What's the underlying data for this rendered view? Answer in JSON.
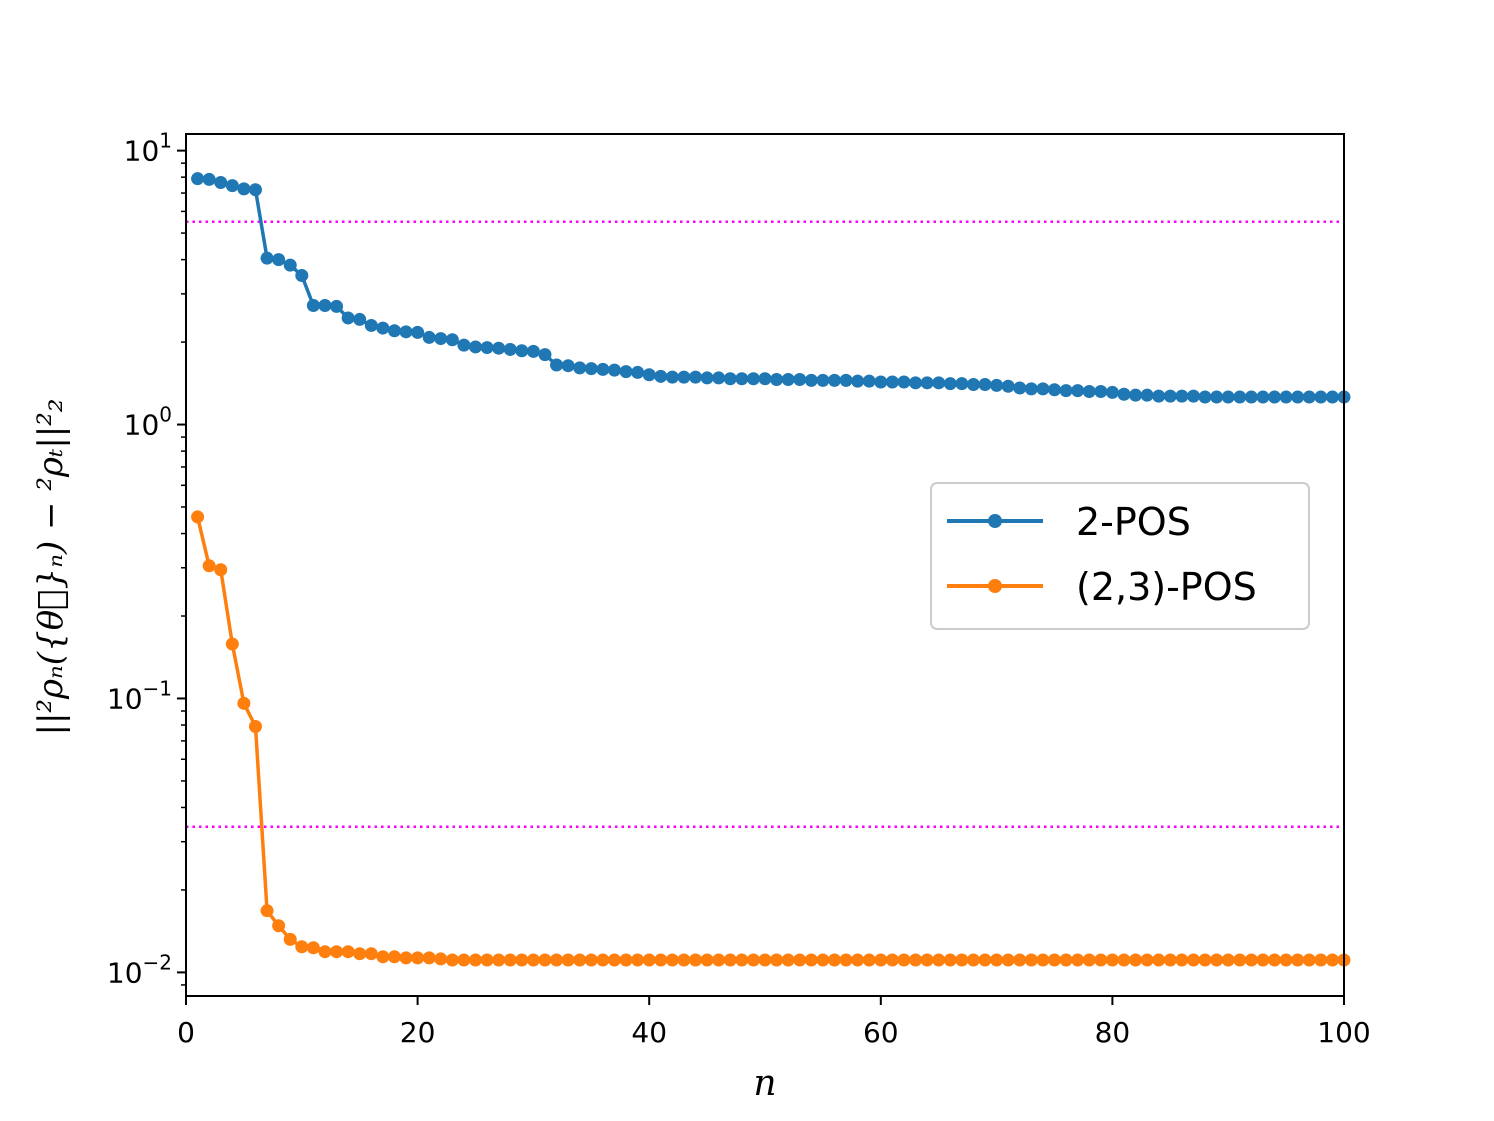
{
  "chart_data": {
    "type": "line",
    "xlabel": "n",
    "ylabel": "||²ρₙ({θ⃗}ₙ) − ²ρₜ||²₂",
    "xlim": [
      0,
      100
    ],
    "ylim": [
      0.0082,
      11.5
    ],
    "yscale": "log",
    "xticks": [
      0,
      20,
      40,
      60,
      80,
      100
    ],
    "yticks": [
      {
        "value": 0.01,
        "base": "10",
        "exp": "−2"
      },
      {
        "value": 0.1,
        "base": "10",
        "exp": "−1"
      },
      {
        "value": 1,
        "base": "10",
        "exp": "0"
      },
      {
        "value": 10,
        "base": "10",
        "exp": "1"
      }
    ],
    "legend_position": "center-right",
    "grid": false,
    "reference_lines": [
      {
        "y": 5.5,
        "color": "#ff00ff",
        "style": "dotted"
      },
      {
        "y": 0.034,
        "color": "#ff00ff",
        "style": "dotted"
      }
    ],
    "series": [
      {
        "name": "2-POS",
        "color": "#1f77b4",
        "x": [
          1,
          2,
          3,
          4,
          5,
          6,
          7,
          8,
          9,
          10,
          11,
          12,
          13,
          14,
          15,
          16,
          17,
          18,
          19,
          20,
          21,
          22,
          23,
          24,
          25,
          26,
          27,
          28,
          29,
          30,
          31,
          32,
          33,
          34,
          35,
          36,
          37,
          38,
          39,
          40,
          41,
          42,
          43,
          44,
          45,
          46,
          47,
          48,
          49,
          50,
          51,
          52,
          53,
          54,
          55,
          56,
          57,
          58,
          59,
          60,
          61,
          62,
          63,
          64,
          65,
          66,
          67,
          68,
          69,
          70,
          71,
          72,
          73,
          74,
          75,
          76,
          77,
          78,
          79,
          80,
          81,
          82,
          83,
          84,
          85,
          86,
          87,
          88,
          89,
          90,
          91,
          92,
          93,
          94,
          95,
          96,
          97,
          98,
          99,
          100
        ],
        "y": [
          7.9,
          7.85,
          7.65,
          7.45,
          7.25,
          7.2,
          4.05,
          4.0,
          3.82,
          3.5,
          2.72,
          2.72,
          2.7,
          2.45,
          2.42,
          2.3,
          2.25,
          2.2,
          2.18,
          2.17,
          2.08,
          2.06,
          2.04,
          1.95,
          1.92,
          1.91,
          1.9,
          1.88,
          1.86,
          1.85,
          1.8,
          1.65,
          1.64,
          1.61,
          1.6,
          1.59,
          1.58,
          1.56,
          1.55,
          1.52,
          1.5,
          1.49,
          1.49,
          1.49,
          1.48,
          1.48,
          1.47,
          1.47,
          1.47,
          1.47,
          1.46,
          1.46,
          1.46,
          1.45,
          1.45,
          1.45,
          1.45,
          1.44,
          1.44,
          1.43,
          1.43,
          1.43,
          1.42,
          1.42,
          1.42,
          1.41,
          1.41,
          1.4,
          1.4,
          1.39,
          1.38,
          1.36,
          1.35,
          1.35,
          1.34,
          1.33,
          1.33,
          1.32,
          1.32,
          1.31,
          1.29,
          1.28,
          1.28,
          1.27,
          1.27,
          1.27,
          1.27,
          1.26,
          1.26,
          1.26,
          1.26,
          1.26,
          1.26,
          1.26,
          1.26,
          1.26,
          1.26,
          1.26,
          1.26,
          1.26
        ]
      },
      {
        "name": "(2,3)-POS",
        "color": "#ff7f0e",
        "x": [
          1,
          2,
          3,
          4,
          5,
          6,
          7,
          8,
          9,
          10,
          11,
          12,
          13,
          14,
          15,
          16,
          17,
          18,
          19,
          20,
          21,
          22,
          23,
          24,
          25,
          26,
          27,
          28,
          29,
          30,
          31,
          32,
          33,
          34,
          35,
          36,
          37,
          38,
          39,
          40,
          41,
          42,
          43,
          44,
          45,
          46,
          47,
          48,
          49,
          50,
          51,
          52,
          53,
          54,
          55,
          56,
          57,
          58,
          59,
          60,
          61,
          62,
          63,
          64,
          65,
          66,
          67,
          68,
          69,
          70,
          71,
          72,
          73,
          74,
          75,
          76,
          77,
          78,
          79,
          80,
          81,
          82,
          83,
          84,
          85,
          86,
          87,
          88,
          89,
          90,
          91,
          92,
          93,
          94,
          95,
          96,
          97,
          98,
          99,
          100
        ],
        "y": [
          0.46,
          0.305,
          0.295,
          0.158,
          0.096,
          0.079,
          0.0168,
          0.0148,
          0.0132,
          0.0124,
          0.0123,
          0.0119,
          0.0119,
          0.0119,
          0.0117,
          0.0117,
          0.0114,
          0.0114,
          0.0113,
          0.0113,
          0.0113,
          0.0112,
          0.0111,
          0.0111,
          0.0111,
          0.0111,
          0.0111,
          0.0111,
          0.0111,
          0.0111,
          0.0111,
          0.0111,
          0.0111,
          0.0111,
          0.0111,
          0.0111,
          0.0111,
          0.0111,
          0.0111,
          0.0111,
          0.0111,
          0.0111,
          0.0111,
          0.0111,
          0.0111,
          0.0111,
          0.0111,
          0.0111,
          0.0111,
          0.0111,
          0.0111,
          0.0111,
          0.0111,
          0.0111,
          0.0111,
          0.0111,
          0.0111,
          0.0111,
          0.0111,
          0.0111,
          0.0111,
          0.0111,
          0.0111,
          0.0111,
          0.0111,
          0.0111,
          0.0111,
          0.0111,
          0.0111,
          0.0111,
          0.0111,
          0.0111,
          0.0111,
          0.0111,
          0.0111,
          0.0111,
          0.0111,
          0.0111,
          0.0111,
          0.0111,
          0.0111,
          0.0111,
          0.0111,
          0.0111,
          0.0111,
          0.0111,
          0.0111,
          0.0111,
          0.0111,
          0.0111,
          0.0111,
          0.0111,
          0.0111,
          0.0111,
          0.0111,
          0.0111,
          0.0111,
          0.0111,
          0.0111,
          0.0111
        ]
      }
    ]
  }
}
